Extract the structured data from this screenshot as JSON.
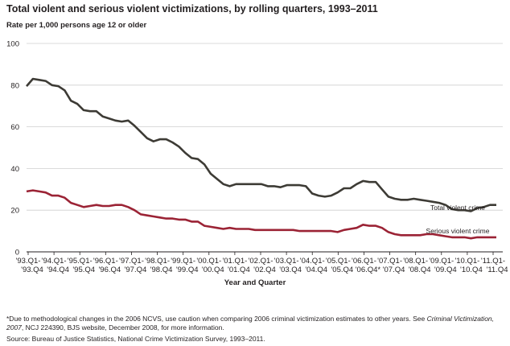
{
  "chart_data": {
    "type": "line",
    "title": "Total violent and serious violent victimizations, by rolling quarters, 1993–2011",
    "ylabel": "Rate per 1,000 persons age 12 or older",
    "xlabel": "Year and Quarter",
    "ylim": [
      0,
      100
    ],
    "yticks": [
      0,
      20,
      40,
      60,
      80,
      100
    ],
    "grid": "horizontal",
    "x_tick_labels": [
      [
        "'93.Q1-",
        "'93.Q4"
      ],
      [
        "'94.Q1-",
        "'94.Q4"
      ],
      [
        "'95.Q1-",
        "'95.Q4"
      ],
      [
        "'96.Q1-",
        "'96.Q4"
      ],
      [
        "'97.Q1-",
        "'97.Q4"
      ],
      [
        "'98.Q1-",
        "'98.Q4"
      ],
      [
        "'99.Q1-",
        "'99.Q4"
      ],
      [
        "'00.Q1-",
        "'00.Q4"
      ],
      [
        "'01.Q1-",
        "'01.Q4"
      ],
      [
        "'02.Q1-",
        "'02.Q4"
      ],
      [
        "'03.Q1-",
        "'03.Q4"
      ],
      [
        "'04.Q1-",
        "'04.Q4"
      ],
      [
        "'05.Q1-",
        "'05.Q4"
      ],
      [
        "'06.Q1-",
        "'06.Q4*"
      ],
      [
        "'07.Q1-",
        "'07.Q4"
      ],
      [
        "'08.Q1-",
        "'08.Q4"
      ],
      [
        "'09.Q1-",
        "'09.Q4"
      ],
      [
        "'10.Q1-",
        "'10.Q4"
      ],
      [
        "'11.Q1-",
        "'11.Q4"
      ]
    ],
    "series": [
      {
        "name": "Total violent crime",
        "color": "#3d3b35",
        "values": [
          79.5,
          83,
          82.5,
          82,
          80,
          79.5,
          77.5,
          72.5,
          71,
          68,
          67.5,
          67.5,
          65,
          64,
          63,
          62.5,
          63,
          60.5,
          57.5,
          54.5,
          53,
          54,
          54,
          52.5,
          50.5,
          47.5,
          45,
          44.5,
          42,
          37.5,
          35,
          32.5,
          31.5,
          32.5,
          32.5,
          32.5,
          32.5,
          32.5,
          31.5,
          31.5,
          31,
          32,
          32,
          32,
          31.5,
          28,
          27,
          26.5,
          27,
          28.5,
          30.5,
          30.5,
          32.5,
          34,
          33.5,
          33.5,
          30,
          26.5,
          25.5,
          25,
          25,
          25.5,
          25,
          24.5,
          24,
          23.5,
          22.5,
          20.5,
          20,
          20,
          19.5,
          21,
          21.5,
          22.5,
          22.5
        ]
      },
      {
        "name": "Serious violent crime",
        "color": "#9b2335",
        "values": [
          29,
          29.5,
          29,
          28.5,
          27,
          27,
          26,
          23.5,
          22.5,
          21.5,
          22,
          22.5,
          22,
          22,
          22.5,
          22.5,
          21.5,
          20,
          18,
          17.5,
          17,
          16.5,
          16,
          16,
          15.5,
          15.5,
          14.5,
          14.5,
          12.5,
          12,
          11.5,
          11,
          11.5,
          11,
          11,
          11,
          10.5,
          10.5,
          10.5,
          10.5,
          10.5,
          10.5,
          10.5,
          10,
          10,
          10,
          10,
          10,
          10,
          9.5,
          10.5,
          11,
          11.5,
          13,
          12.5,
          12.5,
          11.5,
          9.5,
          8.5,
          8,
          8,
          8,
          8,
          8.5,
          8.5,
          8,
          7.5,
          7,
          7,
          7,
          6.5,
          7,
          7,
          7,
          7
        ]
      }
    ],
    "annotations": [
      "Total violent crime",
      "Serious violent crime"
    ]
  },
  "footnote": {
    "text": "*Due to methodological changes in the 2006 NCVS, use caution when comparing 2006 criminal victimization estimates to other years. See ",
    "italic": "Criminal Victimization, 2007",
    "rest": ", NCJ 224390, BJS website, December 2008, for more information."
  },
  "source": "Source: Bureau of Justice Statistics, National Crime Victimization Survey, 1993–2011."
}
